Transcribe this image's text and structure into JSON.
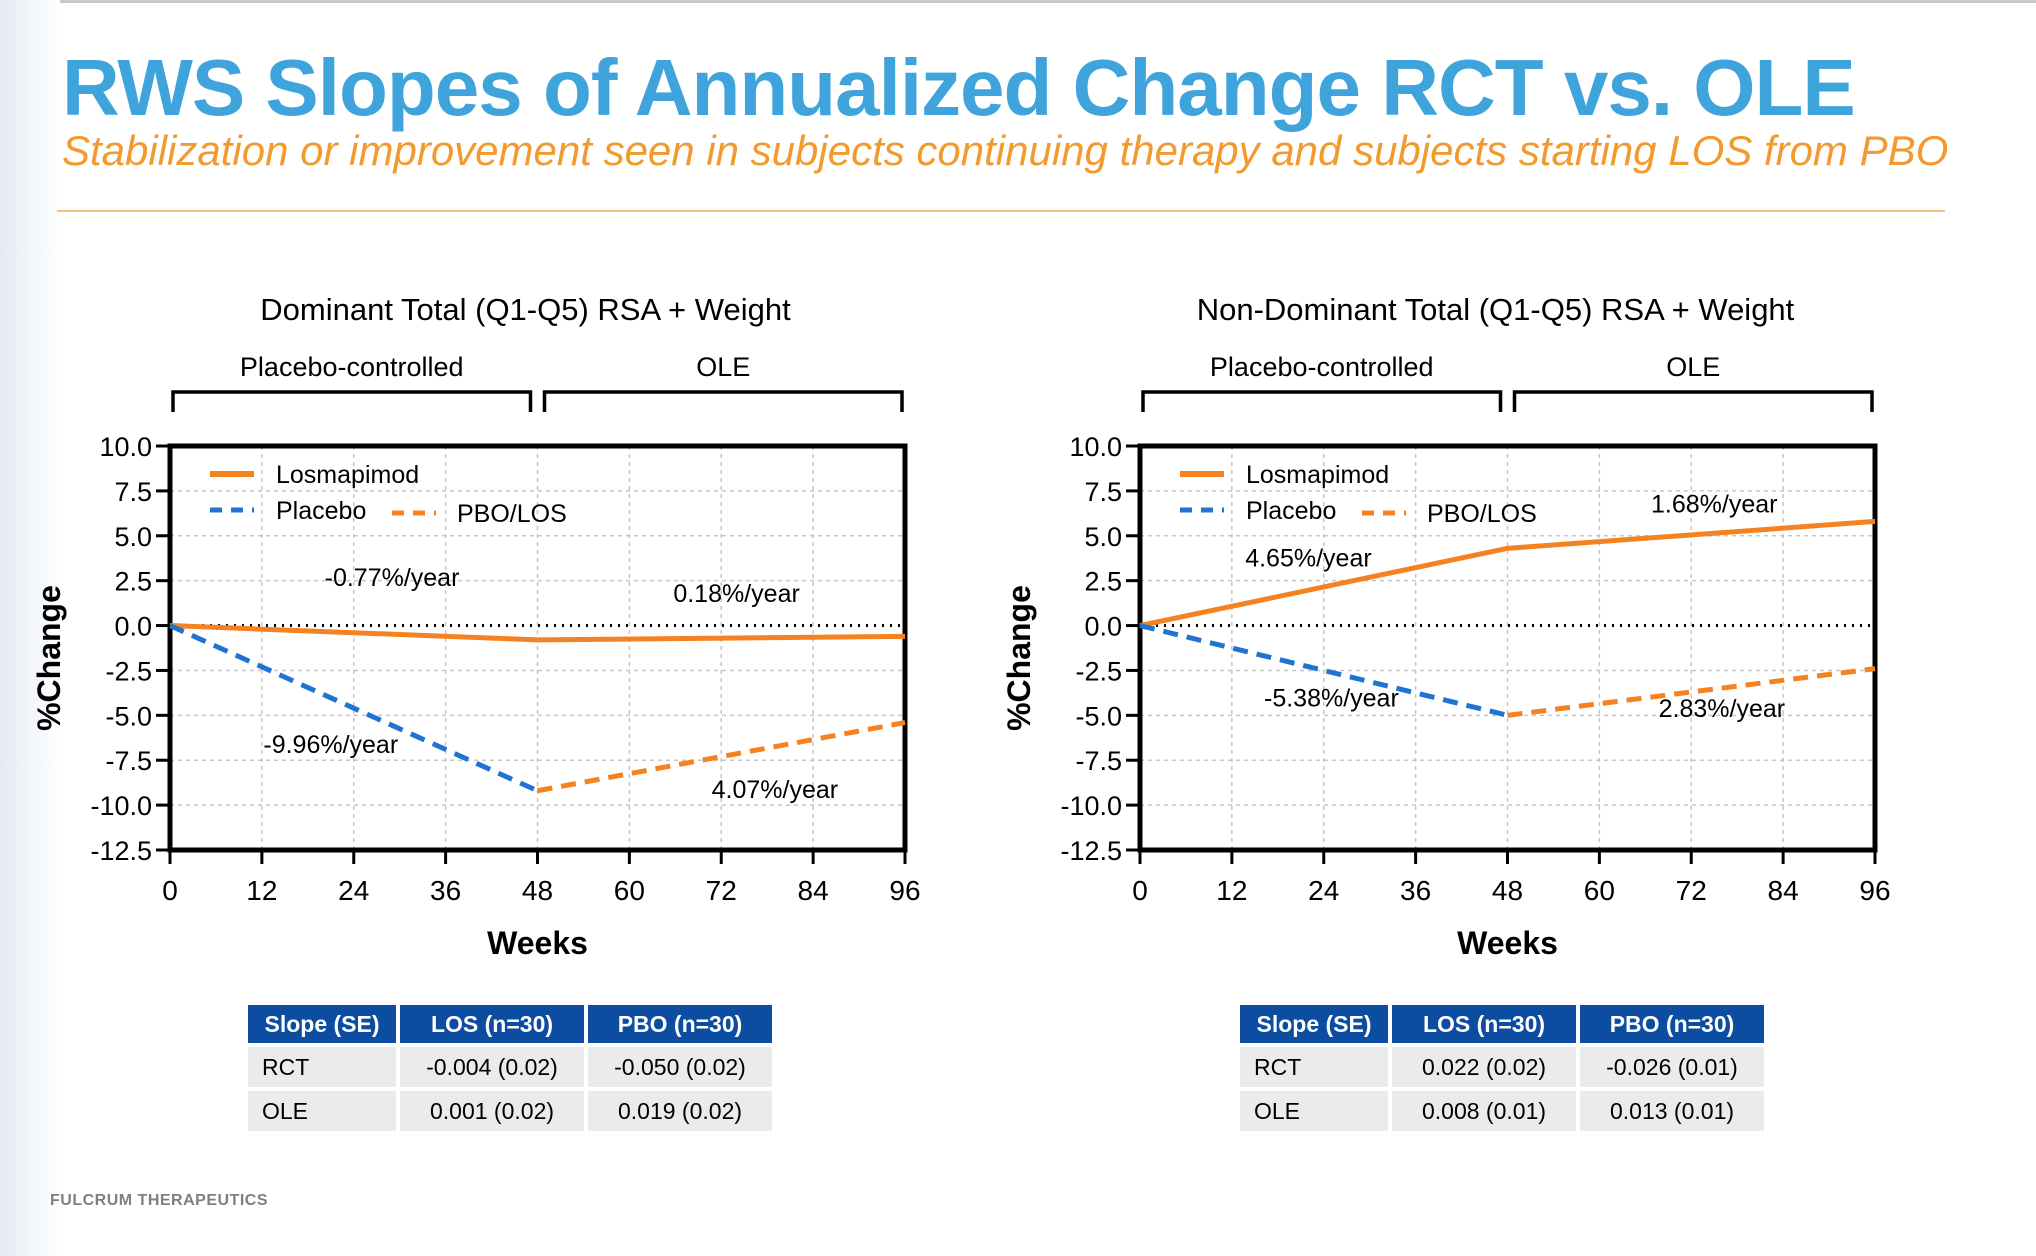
{
  "page": {
    "title": "RWS Slopes of Annualized Change RCT vs. OLE",
    "subtitle": "Stabilization or improvement seen in subjects continuing therapy and subjects starting LOS from PBO",
    "footer": "FULCRUM THERAPEUTICS",
    "colors": {
      "title": "#3fa4dc",
      "subtitle": "#f39a2e",
      "losmapimod": "#f58220",
      "placebo": "#1f73d2",
      "table_header": "#0c4da2"
    }
  },
  "chart_data": [
    {
      "type": "line",
      "title": "Dominant Total (Q1-Q5) RSA + Weight",
      "xlabel": "Weeks",
      "ylabel": "%Change",
      "xlim": [
        0,
        96
      ],
      "ylim": [
        -12.5,
        10.0
      ],
      "xticks": [
        "0",
        "12",
        "24",
        "36",
        "48",
        "60",
        "72",
        "84",
        "96"
      ],
      "yticks": [
        "10.0",
        "7.5",
        "5.0",
        "2.5",
        "0.0",
        "-2.5",
        "-5.0",
        "-7.5",
        "-10.0",
        "-12.5"
      ],
      "grid": true,
      "legend": "top-left",
      "periods": [
        {
          "label": "Placebo-controlled",
          "from": 0,
          "to": 48
        },
        {
          "label": "OLE",
          "from": 48,
          "to": 96
        }
      ],
      "legend_entries": [
        "Losmapimod",
        "Placebo",
        "PBO/LOS"
      ],
      "series": [
        {
          "name": "Losmapimod",
          "style": "solid",
          "color": "#f58220",
          "points": [
            [
              0,
              0.0
            ],
            [
              48,
              -0.8
            ],
            [
              96,
              -0.6
            ]
          ]
        },
        {
          "name": "Placebo",
          "style": "dashed",
          "color": "#1f73d2",
          "points": [
            [
              0,
              0.0
            ],
            [
              48,
              -9.2
            ]
          ]
        },
        {
          "name": "PBO/LOS",
          "style": "dashed",
          "color": "#f58220",
          "points": [
            [
              48,
              -9.2
            ],
            [
              96,
              -5.4
            ]
          ]
        }
      ],
      "annotations": [
        {
          "text": "-0.77%/year",
          "x": 29,
          "y": 2.2
        },
        {
          "text": "0.18%/year",
          "x": 74,
          "y": 1.3
        },
        {
          "text": "-9.96%/year",
          "x": 21,
          "y": -7.1
        },
        {
          "text": "4.07%/year",
          "x": 79,
          "y": -9.6
        }
      ]
    },
    {
      "type": "line",
      "title": "Non-Dominant Total (Q1-Q5) RSA + Weight",
      "xlabel": "Weeks",
      "ylabel": "%Change",
      "xlim": [
        0,
        96
      ],
      "ylim": [
        -12.5,
        10.0
      ],
      "xticks": [
        "0",
        "12",
        "24",
        "36",
        "48",
        "60",
        "72",
        "84",
        "96"
      ],
      "yticks": [
        "10.0",
        "7.5",
        "5.0",
        "2.5",
        "0.0",
        "-2.5",
        "-5.0",
        "-7.5",
        "-10.0",
        "-12.5"
      ],
      "grid": true,
      "legend": "top-left",
      "periods": [
        {
          "label": "Placebo-controlled",
          "from": 0,
          "to": 48
        },
        {
          "label": "OLE",
          "from": 48,
          "to": 96
        }
      ],
      "legend_entries": [
        "Losmapimod",
        "Placebo",
        "PBO/LOS"
      ],
      "series": [
        {
          "name": "Losmapimod",
          "style": "solid",
          "color": "#f58220",
          "points": [
            [
              0,
              0.0
            ],
            [
              48,
              4.3
            ],
            [
              96,
              5.8
            ]
          ]
        },
        {
          "name": "Placebo",
          "style": "dashed",
          "color": "#1f73d2",
          "points": [
            [
              0,
              0.0
            ],
            [
              48,
              -5.0
            ]
          ]
        },
        {
          "name": "PBO/LOS",
          "style": "dashed",
          "color": "#f58220",
          "points": [
            [
              48,
              -5.0
            ],
            [
              96,
              -2.4
            ]
          ]
        }
      ],
      "annotations": [
        {
          "text": "4.65%/year",
          "x": 22,
          "y": 3.3
        },
        {
          "text": "1.68%/year",
          "x": 75,
          "y": 6.3
        },
        {
          "text": "-5.38%/year",
          "x": 25,
          "y": -4.5
        },
        {
          "text": "2.83%/year",
          "x": 76,
          "y": -5.1
        }
      ]
    }
  ],
  "tables": [
    {
      "headers": [
        "Slope (SE)",
        "LOS (n=30)",
        "PBO (n=30)"
      ],
      "rows": [
        {
          "label": "RCT",
          "los": "-0.004 (0.02)",
          "pbo": "-0.050 (0.02)"
        },
        {
          "label": "OLE",
          "los": "0.001 (0.02)",
          "pbo": "0.019 (0.02)"
        }
      ]
    },
    {
      "headers": [
        "Slope (SE)",
        "LOS (n=30)",
        "PBO (n=30)"
      ],
      "rows": [
        {
          "label": "RCT",
          "los": "0.022 (0.02)",
          "pbo": "-0.026 (0.01)"
        },
        {
          "label": "OLE",
          "los": "0.008 (0.01)",
          "pbo": "0.013 (0.01)"
        }
      ]
    }
  ]
}
